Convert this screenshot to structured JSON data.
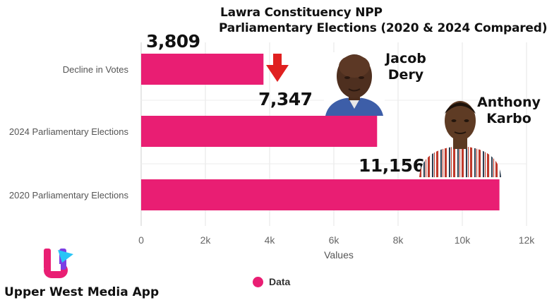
{
  "title": {
    "line1": "Lawra Constituency NPP",
    "line2": "Parliamentary Elections (2020 & 2024 Compared)"
  },
  "chart_data": {
    "type": "bar",
    "orientation": "horizontal",
    "categories": [
      "Decline in Votes",
      "2024 Parliamentary Elections",
      "2020 Parliamentary Elections"
    ],
    "values": [
      3809,
      7347,
      11156
    ],
    "value_labels": [
      "3,809",
      "7,347",
      "11,156"
    ],
    "xlabel": "Values",
    "xlim": [
      0,
      12000
    ],
    "x_ticks": [
      0,
      2000,
      4000,
      6000,
      8000,
      10000,
      12000
    ],
    "x_tick_labels": [
      "0",
      "2k",
      "4k",
      "6k",
      "8k",
      "10k",
      "12k"
    ],
    "grid": "vertical",
    "legend": {
      "position": "bottom",
      "entries": [
        "Data"
      ]
    },
    "bar_color": "#e91e73",
    "annotations": [
      {
        "type": "arrow",
        "direction": "down",
        "color": "#e02020",
        "icon": "down-arrow-icon"
      }
    ]
  },
  "people": {
    "jacob": {
      "name_line1": "Jacob",
      "name_line2": "Dery",
      "photo": "jacob-dery-photo"
    },
    "anthony": {
      "name_line1": "Anthony",
      "name_line2": "Karbo",
      "photo": "anthony-karbo-photo"
    }
  },
  "brand": {
    "name": "Upper West Media App",
    "logo": "upper-west-media-logo",
    "logo_colors": [
      "#e91e73",
      "#7b3fe4",
      "#29c5f6"
    ]
  }
}
